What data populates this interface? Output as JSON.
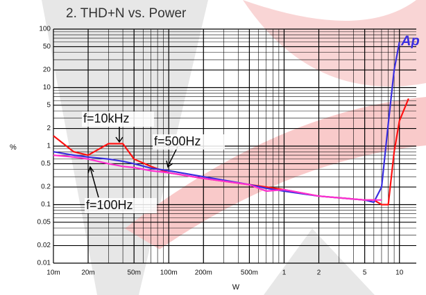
{
  "chart_data": {
    "type": "line",
    "title": "2. THD+N vs. Power",
    "logo": "Ap",
    "x_label": "W",
    "y_label": "%",
    "x_log": true,
    "y_log": true,
    "grid": true,
    "minor_grid": true,
    "xlim": [
      0.01,
      14
    ],
    "ylim": [
      0.01,
      100
    ],
    "xticks": [
      {
        "value": 0.01,
        "label": "10m"
      },
      {
        "value": 0.02,
        "label": "20m"
      },
      {
        "value": 0.05,
        "label": "50m"
      },
      {
        "value": 0.1,
        "label": "100m"
      },
      {
        "value": 0.2,
        "label": "200m"
      },
      {
        "value": 0.5,
        "label": "500m"
      },
      1,
      2,
      5,
      10
    ],
    "yticks": [
      0.01,
      0.02,
      0.05,
      0.1,
      0.2,
      0.5,
      1,
      2,
      5,
      10,
      20,
      50,
      100
    ],
    "x": [
      0.01,
      0.015,
      0.02,
      0.03,
      0.04,
      0.05,
      0.07,
      0.1,
      0.2,
      0.5,
      0.7,
      1,
      2,
      5,
      6,
      7,
      8,
      9,
      10,
      12
    ],
    "series": [
      {
        "name": "f=10kHz",
        "color": "#ff1010",
        "values": [
          1.5,
          0.8,
          0.7,
          1.1,
          1.1,
          0.6,
          0.45,
          0.35,
          0.28,
          0.22,
          0.2,
          0.18,
          0.14,
          0.12,
          0.12,
          0.1,
          0.1,
          0.8,
          2.7,
          6.5
        ]
      },
      {
        "name": "f=500Hz",
        "color": "#3a2ee0",
        "values": [
          0.8,
          0.7,
          0.65,
          0.6,
          0.55,
          0.5,
          0.42,
          0.38,
          0.3,
          0.22,
          0.19,
          0.17,
          0.14,
          0.12,
          0.11,
          0.2,
          2.4,
          20,
          60,
          null
        ]
      },
      {
        "name": "f=100Hz",
        "color": "#ff30d0",
        "values": [
          0.7,
          0.65,
          0.6,
          0.5,
          0.45,
          0.43,
          0.38,
          0.35,
          0.28,
          0.22,
          0.17,
          0.18,
          0.14,
          0.12,
          0.12,
          0.12,
          null,
          null,
          null,
          null
        ]
      }
    ]
  }
}
